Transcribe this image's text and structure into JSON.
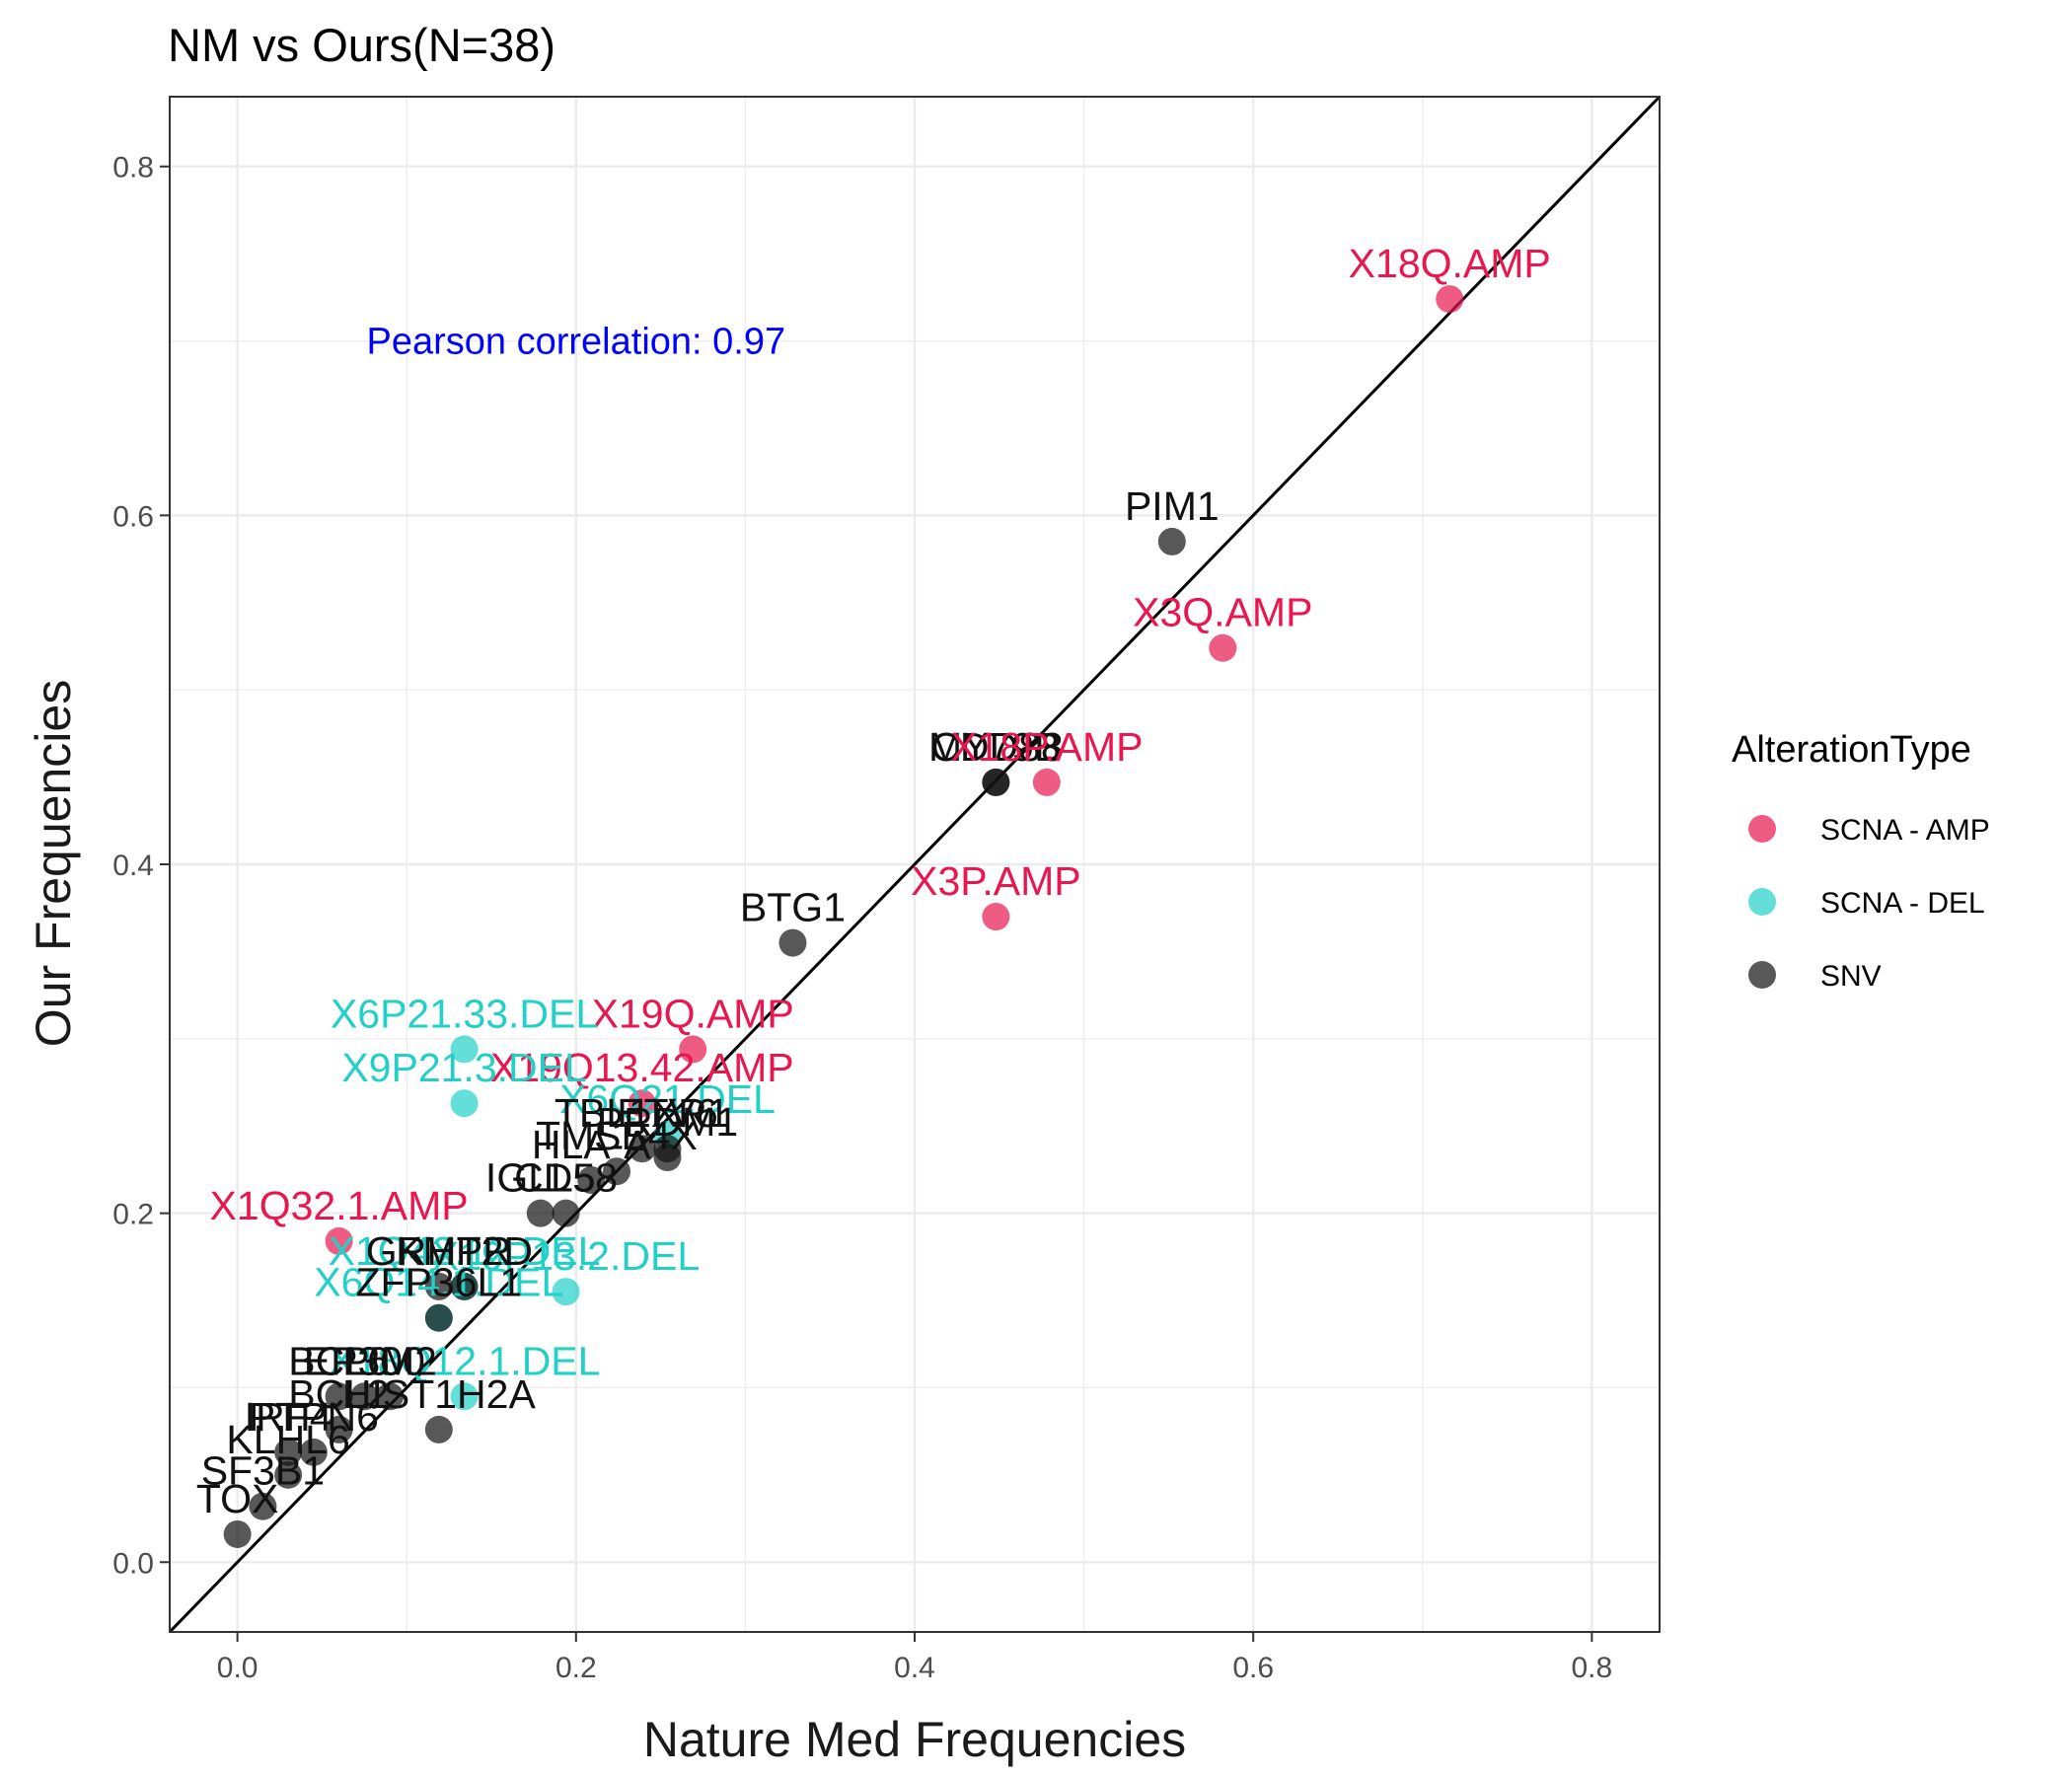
{
  "chart_data": {
    "type": "scatter",
    "title": "NM vs Ours(N=38)",
    "xlabel": "Nature Med Frequencies",
    "ylabel": "Our Frequencies",
    "xlim": [
      -0.04,
      0.84
    ],
    "ylim": [
      -0.04,
      0.84
    ],
    "x_ticks": [
      "0.0",
      "0.2",
      "0.4",
      "0.6",
      "0.8"
    ],
    "y_ticks": [
      "0.0",
      "0.2",
      "0.4",
      "0.6",
      "0.8"
    ],
    "grid": true,
    "reference_line": "y = x",
    "annotation": {
      "text": "Pearson correlation: 0.97",
      "x": 0.2,
      "y": 0.7,
      "color": "#0000ff"
    },
    "legend": {
      "title": "AlterationType",
      "position": "right",
      "entries": [
        {
          "label": "SCNA - AMP",
          "color": "#e8174f"
        },
        {
          "label": "SCNA - DEL",
          "color": "#22d0c8"
        },
        {
          "label": "SNV",
          "color": "#111111"
        }
      ]
    },
    "points": [
      {
        "label": "X18Q.AMP",
        "type": "SCNA - AMP",
        "x": 0.716,
        "y": 0.724
      },
      {
        "label": "PIM1",
        "type": "SNV",
        "x": 0.552,
        "y": 0.585
      },
      {
        "label": "X3Q.AMP",
        "type": "SCNA - AMP",
        "x": 0.582,
        "y": 0.524
      },
      {
        "label": "CD79B",
        "type": "SNV",
        "x": 0.448,
        "y": 0.447
      },
      {
        "label": "MYD88",
        "type": "SNV",
        "x": 0.448,
        "y": 0.447
      },
      {
        "label": "X18P.AMP",
        "type": "SCNA - AMP",
        "x": 0.478,
        "y": 0.447
      },
      {
        "label": "X3P.AMP",
        "type": "SCNA - AMP",
        "x": 0.448,
        "y": 0.37
      },
      {
        "label": "BTG1",
        "type": "SNV",
        "x": 0.328,
        "y": 0.355
      },
      {
        "label": "X19Q.AMP",
        "type": "SCNA - AMP",
        "x": 0.269,
        "y": 0.294
      },
      {
        "label": "X6P21.33.DEL",
        "type": "SCNA - DEL",
        "x": 0.134,
        "y": 0.294
      },
      {
        "label": "X19Q13.42.AMP",
        "type": "SCNA - AMP",
        "x": 0.239,
        "y": 0.263
      },
      {
        "label": "X9P21.3.DEL",
        "type": "SCNA - DEL",
        "x": 0.134,
        "y": 0.263
      },
      {
        "label": "X6Q21.DEL",
        "type": "SCNA - DEL",
        "x": 0.254,
        "y": 0.245
      },
      {
        "label": "ETV6",
        "type": "SNV",
        "x": 0.254,
        "y": 0.237
      },
      {
        "label": "TBL1XR1",
        "type": "SNV",
        "x": 0.239,
        "y": 0.237
      },
      {
        "label": "PRDM1",
        "type": "SNV",
        "x": 0.254,
        "y": 0.232
      },
      {
        "label": "TMSB4X",
        "type": "SNV",
        "x": 0.224,
        "y": 0.224
      },
      {
        "label": "HLA-A",
        "type": "SNV",
        "x": 0.209,
        "y": 0.219
      },
      {
        "label": "IGLL5",
        "type": "SNV",
        "x": 0.179,
        "y": 0.2
      },
      {
        "label": "CD58",
        "type": "SNV",
        "x": 0.194,
        "y": 0.2
      },
      {
        "label": "X1Q32.1.AMP",
        "type": "SCNA - AMP",
        "x": 0.06,
        "y": 0.184
      },
      {
        "label": "X1Q42.12.DEL",
        "type": "SCNA - DEL",
        "x": 0.134,
        "y": 0.158
      },
      {
        "label": "X19P13.2.DEL",
        "type": "SCNA - DEL",
        "x": 0.194,
        "y": 0.155
      },
      {
        "label": "GRHPR",
        "type": "SNV",
        "x": 0.119,
        "y": 0.158
      },
      {
        "label": "KMT2D",
        "type": "SNV",
        "x": 0.134,
        "y": 0.158
      },
      {
        "label": "X6Q14.1.DEL",
        "type": "SCNA - DEL",
        "x": 0.119,
        "y": 0.14
      },
      {
        "label": "ZFP36L1",
        "type": "SNV",
        "x": 0.119,
        "y": 0.14
      },
      {
        "label": "X18Q12.1.DEL",
        "type": "SCNA - DEL",
        "x": 0.134,
        "y": 0.095
      },
      {
        "label": "BCL6",
        "type": "SNV",
        "x": 0.06,
        "y": 0.095
      },
      {
        "label": "PIM2",
        "type": "SNV",
        "x": 0.09,
        "y": 0.095
      },
      {
        "label": "EP300",
        "type": "SNV",
        "x": 0.075,
        "y": 0.095
      },
      {
        "label": "HIST1H2A",
        "type": "SNV",
        "x": 0.119,
        "y": 0.076
      },
      {
        "label": "BCL2",
        "type": "SNV",
        "x": 0.06,
        "y": 0.076
      },
      {
        "label": "PTPN6",
        "type": "SNV",
        "x": 0.045,
        "y": 0.063
      },
      {
        "label": "IRF4",
        "type": "SNV",
        "x": 0.03,
        "y": 0.063
      },
      {
        "label": "KLHL6",
        "type": "SNV",
        "x": 0.03,
        "y": 0.05
      },
      {
        "label": "SF3B1",
        "type": "SNV",
        "x": 0.015,
        "y": 0.032
      },
      {
        "label": "TOX",
        "type": "SNV",
        "x": 0.0,
        "y": 0.016
      }
    ]
  }
}
